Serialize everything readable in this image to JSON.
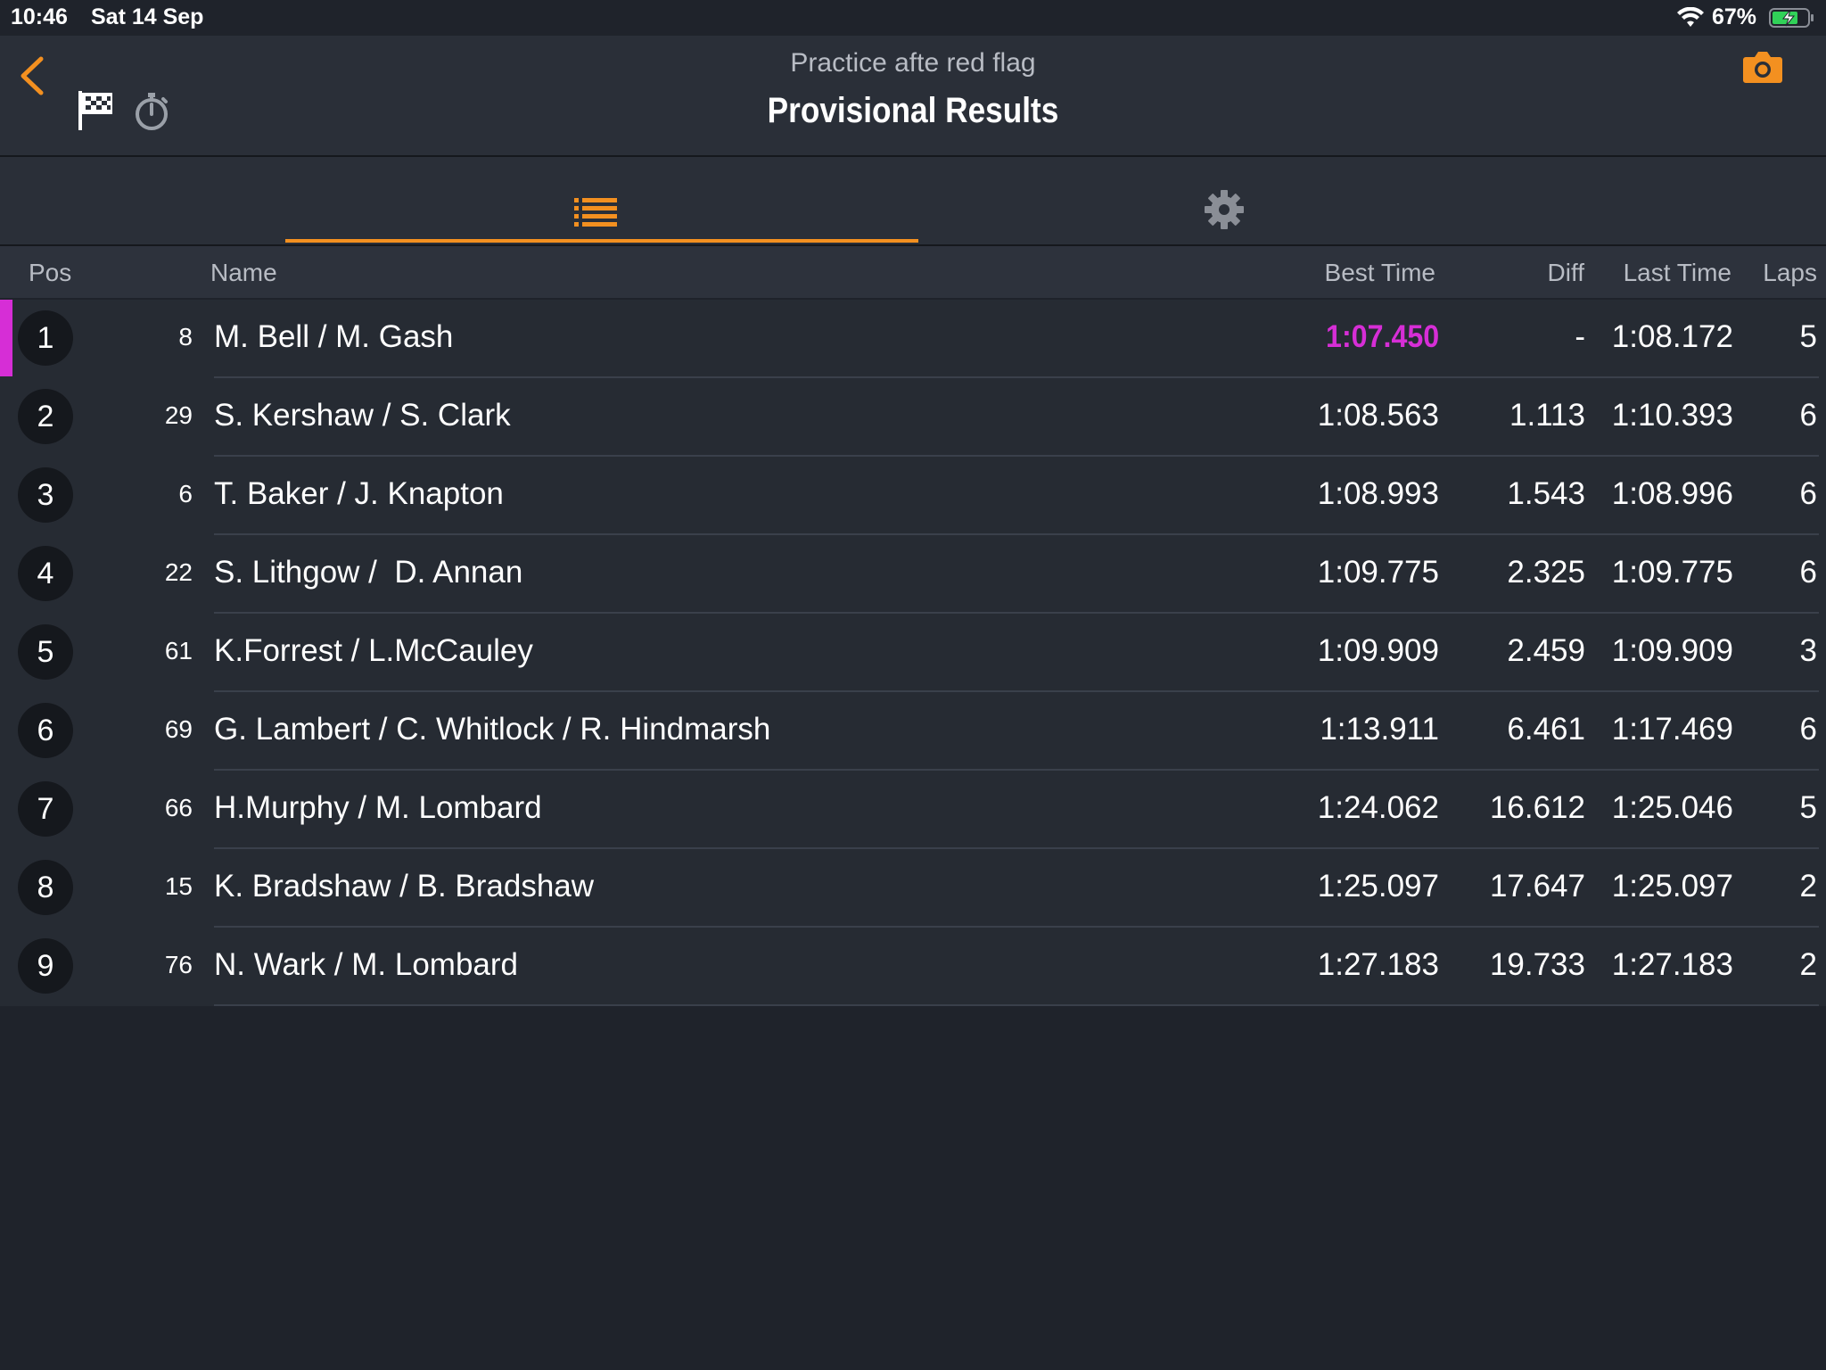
{
  "status_bar": {
    "time": "10:46",
    "date": "Sat 14 Sep",
    "battery": "67%"
  },
  "header": {
    "subtitle": "Practice afte red flag",
    "title": "Provisional Results",
    "back_icon": "chevron-left-icon",
    "flag_icon": "checkered-flag-icon",
    "timer_icon": "stopwatch-icon",
    "camera_icon": "camera-icon"
  },
  "tabs": [
    {
      "icon": "list-icon",
      "active": true
    },
    {
      "icon": "gear-icon",
      "active": false
    }
  ],
  "columns": {
    "pos": "Pos",
    "name": "Name",
    "best": "Best Time",
    "diff": "Diff",
    "last": "Last Time",
    "laps": "Laps"
  },
  "colors": {
    "accent": "#f39020",
    "fastest": "#d62ed6",
    "background": "#1f232b"
  },
  "rows": [
    {
      "pos": "1",
      "num": "8",
      "name": "M. Bell / M. Gash",
      "best": "1:07.450",
      "diff": "-",
      "last": "1:08.172",
      "laps": "5"
    },
    {
      "pos": "2",
      "num": "29",
      "name": "S. Kershaw / S. Clark",
      "best": "1:08.563",
      "diff": "1.113",
      "last": "1:10.393",
      "laps": "6"
    },
    {
      "pos": "3",
      "num": "6",
      "name": "T. Baker / J. Knapton",
      "best": "1:08.993",
      "diff": "1.543",
      "last": "1:08.996",
      "laps": "6"
    },
    {
      "pos": "4",
      "num": "22",
      "name": "S. Lithgow /  D. Annan",
      "best": "1:09.775",
      "diff": "2.325",
      "last": "1:09.775",
      "laps": "6"
    },
    {
      "pos": "5",
      "num": "61",
      "name": "K.Forrest / L.McCauley",
      "best": "1:09.909",
      "diff": "2.459",
      "last": "1:09.909",
      "laps": "3"
    },
    {
      "pos": "6",
      "num": "69",
      "name": "G. Lambert / C. Whitlock / R. Hindmarsh",
      "best": "1:13.911",
      "diff": "6.461",
      "last": "1:17.469",
      "laps": "6"
    },
    {
      "pos": "7",
      "num": "66",
      "name": "H.Murphy / M. Lombard",
      "best": "1:24.062",
      "diff": "16.612",
      "last": "1:25.046",
      "laps": "5"
    },
    {
      "pos": "8",
      "num": "15",
      "name": "K. Bradshaw / B. Bradshaw",
      "best": "1:25.097",
      "diff": "17.647",
      "last": "1:25.097",
      "laps": "2"
    },
    {
      "pos": "9",
      "num": "76",
      "name": "N. Wark / M. Lombard",
      "best": "1:27.183",
      "diff": "19.733",
      "last": "1:27.183",
      "laps": "2"
    }
  ]
}
